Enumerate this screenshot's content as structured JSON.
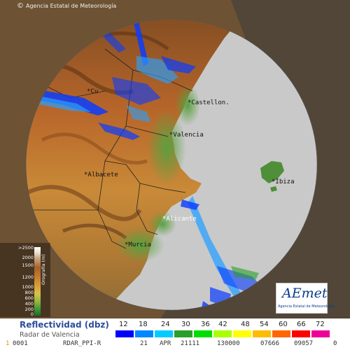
{
  "copyright": {
    "symbol": "©",
    "text": "Agencia Estatal de Meteorología"
  },
  "cities": [
    {
      "name": "*Castellon.",
      "style": "dark"
    },
    {
      "name": "*Valencia",
      "style": "dark"
    },
    {
      "name": "*Albacete",
      "style": "dark"
    },
    {
      "name": "*Ibiza",
      "style": "dark"
    },
    {
      "name": "*Alicante",
      "style": "light"
    },
    {
      "name": "*Murcia",
      "style": "dark"
    },
    {
      "name": "*Cu",
      "style": "dark"
    }
  ],
  "elevation_legend": {
    "labels": [
      ">2500",
      "2000",
      "1500",
      "1200",
      "1000",
      "800",
      "600",
      "400",
      "200",
      "0"
    ],
    "title": "Orografía (m)"
  },
  "logo": {
    "mark": "AEmet",
    "subtitle": "Agencia Estatal de Meteorología"
  },
  "legend": {
    "title": "Reflectividad (dbz)",
    "radar": "Radar de Valencia",
    "scale": [
      {
        "label": "12",
        "color": "#0000ff"
      },
      {
        "label": "18",
        "color": "#0088ff"
      },
      {
        "label": "24",
        "color": "#00ccff"
      },
      {
        "label": "30",
        "color": "#2aa02a"
      },
      {
        "label": "36",
        "color": "#00dd00"
      },
      {
        "label": "42",
        "color": "#aaff00"
      },
      {
        "label": "48",
        "color": "#ffff00"
      },
      {
        "label": "54",
        "color": "#ffbb00"
      },
      {
        "label": "60",
        "color": "#ff6600"
      },
      {
        "label": "66",
        "color": "#ff0000"
      },
      {
        "label": "72",
        "color": "#ee0099"
      }
    ]
  },
  "status_bar": {
    "fields": [
      "1",
      "0001",
      "RDAR_PPI-R",
      "21",
      "APR",
      "21111",
      "130000",
      "07666",
      "09057",
      "0"
    ]
  },
  "colors": {
    "sea": "#c9c9c9",
    "outside_coverage": "#7a5a3a",
    "radar_echo": "#0a3cff"
  }
}
